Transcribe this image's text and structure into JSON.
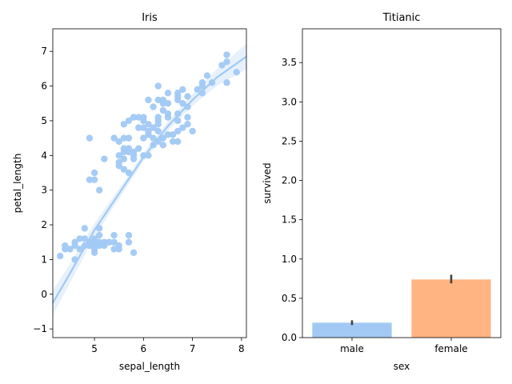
{
  "chart_data": [
    {
      "type": "scatter",
      "title": "Iris",
      "xlabel": "sepal_length",
      "ylabel": "petal_length",
      "xlim": [
        4.15,
        8.1
      ],
      "ylim": [
        -1.25,
        7.65
      ],
      "xticks": [
        5,
        6,
        7,
        8
      ],
      "yticks": [
        -1,
        0,
        1,
        2,
        3,
        4,
        5,
        6,
        7
      ],
      "grid": false,
      "color": "#a1c9f4",
      "fit": {
        "order": 2,
        "x": [
          4.15,
          4.5,
          5.0,
          5.5,
          6.0,
          6.5,
          7.0,
          7.5,
          8.1
        ],
        "y": [
          -0.25,
          0.6,
          1.85,
          2.9,
          3.95,
          4.85,
          5.6,
          6.25,
          6.85
        ]
      },
      "points": [
        [
          4.3,
          1.1
        ],
        [
          4.4,
          1.3
        ],
        [
          4.4,
          1.4
        ],
        [
          4.5,
          1.3
        ],
        [
          4.6,
          1.0
        ],
        [
          4.6,
          1.4
        ],
        [
          4.6,
          1.5
        ],
        [
          4.7,
          1.3
        ],
        [
          4.7,
          1.6
        ],
        [
          4.8,
          1.4
        ],
        [
          4.8,
          1.6
        ],
        [
          4.8,
          1.9
        ],
        [
          4.9,
          1.4
        ],
        [
          4.9,
          1.5
        ],
        [
          5.0,
          1.2
        ],
        [
          5.0,
          1.3
        ],
        [
          5.0,
          1.4
        ],
        [
          5.0,
          1.5
        ],
        [
          5.0,
          1.6
        ],
        [
          5.1,
          1.4
        ],
        [
          5.1,
          1.5
        ],
        [
          5.1,
          1.7
        ],
        [
          5.1,
          1.9
        ],
        [
          5.2,
          1.4
        ],
        [
          5.2,
          1.5
        ],
        [
          5.3,
          1.5
        ],
        [
          5.4,
          1.3
        ],
        [
          5.4,
          1.5
        ],
        [
          5.4,
          1.7
        ],
        [
          5.5,
          1.3
        ],
        [
          5.5,
          1.4
        ],
        [
          5.7,
          1.5
        ],
        [
          5.7,
          1.7
        ],
        [
          5.8,
          1.2
        ],
        [
          4.9,
          3.3
        ],
        [
          4.9,
          4.5
        ],
        [
          5.0,
          3.3
        ],
        [
          5.0,
          3.5
        ],
        [
          5.1,
          3.0
        ],
        [
          5.2,
          3.9
        ],
        [
          5.4,
          4.5
        ],
        [
          5.5,
          3.7
        ],
        [
          5.5,
          3.8
        ],
        [
          5.5,
          4.0
        ],
        [
          5.5,
          4.4
        ],
        [
          5.6,
          3.6
        ],
        [
          5.6,
          3.9
        ],
        [
          5.6,
          4.1
        ],
        [
          5.6,
          4.2
        ],
        [
          5.6,
          4.5
        ],
        [
          5.6,
          4.9
        ],
        [
          5.7,
          3.5
        ],
        [
          5.7,
          4.1
        ],
        [
          5.7,
          4.2
        ],
        [
          5.7,
          4.5
        ],
        [
          5.7,
          5.0
        ],
        [
          5.8,
          3.9
        ],
        [
          5.8,
          4.0
        ],
        [
          5.8,
          4.1
        ],
        [
          5.8,
          5.1
        ],
        [
          5.9,
          4.2
        ],
        [
          5.9,
          4.8
        ],
        [
          5.9,
          5.1
        ],
        [
          6.0,
          4.0
        ],
        [
          6.0,
          4.5
        ],
        [
          6.0,
          4.8
        ],
        [
          6.0,
          5.0
        ],
        [
          6.0,
          5.1
        ],
        [
          6.1,
          4.0
        ],
        [
          6.1,
          4.6
        ],
        [
          6.1,
          4.7
        ],
        [
          6.1,
          4.9
        ],
        [
          6.1,
          5.6
        ],
        [
          6.2,
          4.3
        ],
        [
          6.2,
          4.5
        ],
        [
          6.2,
          4.8
        ],
        [
          6.2,
          5.4
        ],
        [
          6.3,
          4.4
        ],
        [
          6.3,
          4.7
        ],
        [
          6.3,
          4.9
        ],
        [
          6.3,
          5.0
        ],
        [
          6.3,
          5.1
        ],
        [
          6.3,
          5.6
        ],
        [
          6.3,
          6.0
        ],
        [
          6.4,
          4.3
        ],
        [
          6.4,
          4.5
        ],
        [
          6.4,
          5.3
        ],
        [
          6.4,
          5.5
        ],
        [
          6.4,
          5.6
        ],
        [
          6.5,
          4.6
        ],
        [
          6.5,
          5.1
        ],
        [
          6.5,
          5.2
        ],
        [
          6.5,
          5.5
        ],
        [
          6.5,
          5.8
        ],
        [
          6.6,
          4.4
        ],
        [
          6.6,
          4.6
        ],
        [
          6.7,
          4.4
        ],
        [
          6.7,
          4.7
        ],
        [
          6.7,
          5.0
        ],
        [
          6.7,
          5.2
        ],
        [
          6.7,
          5.6
        ],
        [
          6.7,
          5.7
        ],
        [
          6.7,
          5.8
        ],
        [
          6.8,
          4.8
        ],
        [
          6.8,
          5.5
        ],
        [
          6.8,
          5.9
        ],
        [
          6.9,
          4.9
        ],
        [
          6.9,
          5.1
        ],
        [
          6.9,
          5.4
        ],
        [
          6.9,
          5.7
        ],
        [
          7.0,
          4.7
        ],
        [
          7.1,
          5.9
        ],
        [
          7.2,
          5.8
        ],
        [
          7.2,
          6.0
        ],
        [
          7.2,
          6.1
        ],
        [
          7.3,
          6.3
        ],
        [
          7.4,
          6.1
        ],
        [
          7.6,
          6.6
        ],
        [
          7.7,
          6.1
        ],
        [
          7.7,
          6.7
        ],
        [
          7.7,
          6.9
        ],
        [
          7.9,
          6.4
        ]
      ]
    },
    {
      "type": "bar",
      "title": "Titianic",
      "xlabel": "sex",
      "ylabel": "survived",
      "categories": [
        "male",
        "female"
      ],
      "values": [
        0.19,
        0.74
      ],
      "ci": [
        [
          0.16,
          0.22
        ],
        [
          0.69,
          0.8
        ]
      ],
      "colors": [
        "#a1c9f4",
        "#ffb482"
      ],
      "ylim": [
        0,
        3.93
      ],
      "yticks": [
        0.0,
        0.5,
        1.0,
        1.5,
        2.0,
        2.5,
        3.0,
        3.5
      ],
      "ytick_labels": [
        "0.0",
        "0.5",
        "1.0",
        "1.5",
        "2.0",
        "2.5",
        "3.0",
        "3.5"
      ],
      "grid": false
    }
  ]
}
